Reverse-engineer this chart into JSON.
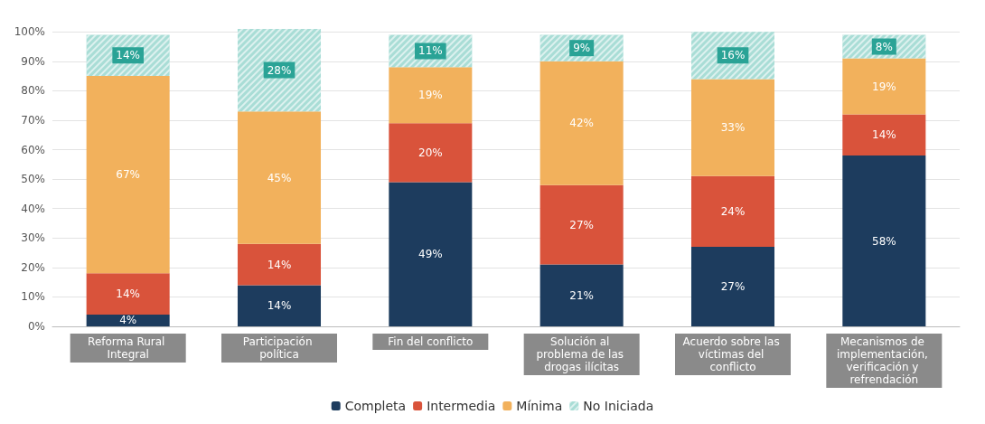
{
  "chart_data": {
    "type": "bar",
    "stacked": true,
    "categories": [
      "Reforma Rural Integral",
      "Participación política",
      "Fin del conflicto",
      "Solución al problema de las drogas ilícitas",
      "Acuerdo sobre las víctimas del conflicto",
      "Mecanismos de implementación, verificación y refrendación"
    ],
    "series": [
      {
        "name": "Completa",
        "color": "#1d3c5e",
        "values": [
          4,
          14,
          49,
          21,
          27,
          58
        ],
        "value_labels": [
          "4%",
          "14%",
          "49%",
          "21%",
          "27%",
          "58%"
        ]
      },
      {
        "name": "Intermedia",
        "color": "#d9533b",
        "values": [
          14,
          14,
          20,
          27,
          24,
          14
        ],
        "value_labels": [
          "14%",
          "14%",
          "20%",
          "27%",
          "24%",
          "14%"
        ]
      },
      {
        "name": "Mínima",
        "color": "#f2b15c",
        "values": [
          67,
          45,
          19,
          42,
          33,
          19
        ],
        "value_labels": [
          "67%",
          "45%",
          "19%",
          "42%",
          "33%",
          "19%"
        ]
      },
      {
        "name": "No Iniciada",
        "color": "#a9ddd6",
        "values": [
          14,
          28,
          11,
          9,
          16,
          8
        ],
        "value_labels": [
          "14%",
          "28%",
          "11%",
          "9%",
          "16%",
          "8%"
        ]
      }
    ],
    "ylim": [
      0,
      101
    ],
    "yticks": [
      {
        "value": 0,
        "label": "0%"
      },
      {
        "value": 10,
        "label": "10%"
      },
      {
        "value": 20,
        "label": "20%"
      },
      {
        "value": 30,
        "label": "30%"
      },
      {
        "value": 40,
        "label": "40%"
      },
      {
        "value": 50,
        "label": "50%"
      },
      {
        "value": 60,
        "label": "60%"
      },
      {
        "value": 70,
        "label": "70%"
      },
      {
        "value": 80,
        "label": "80%"
      },
      {
        "value": 90,
        "label": "90%"
      },
      {
        "value": 100,
        "label": "100%"
      }
    ],
    "grid": "y",
    "legend": "bottom"
  }
}
